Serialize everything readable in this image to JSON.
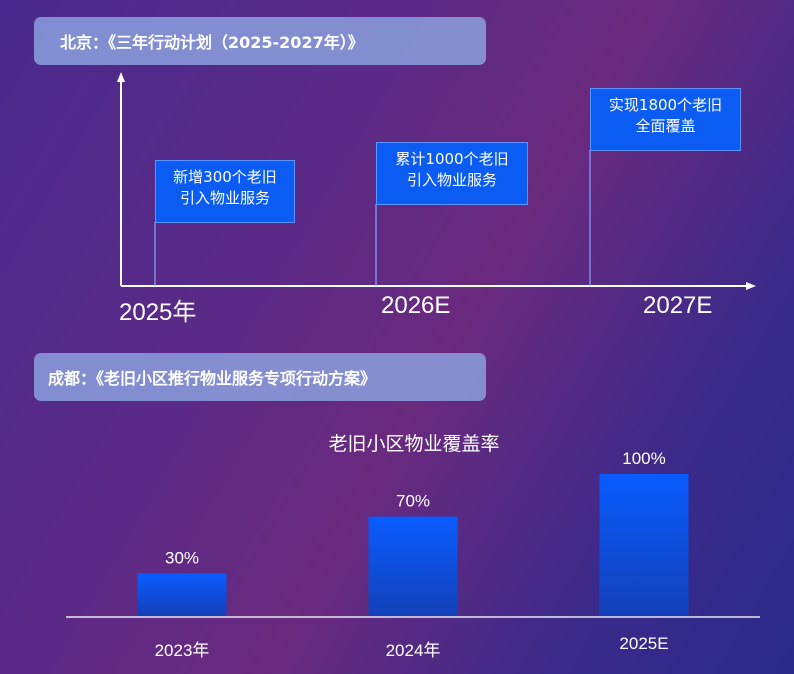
{
  "beijing": {
    "header": "北京：《三年行动计划（2025-2027年）》",
    "milestones": [
      {
        "year": "2025年",
        "line1": "新增300个老旧",
        "line2": "引入物业服务"
      },
      {
        "year": "2026E",
        "line1": "累计1000个老旧",
        "line2": "引入物业服务"
      },
      {
        "year": "2027E",
        "line1": "实现1800个老旧",
        "line2": "全面覆盖"
      }
    ]
  },
  "chengdu": {
    "header": "成都：《老旧小区推行物业服务专项行动方案》"
  },
  "chart_data": {
    "type": "bar",
    "title": "老旧小区物业覆盖率",
    "categories": [
      "2023年",
      "2024年",
      "2025E"
    ],
    "values": [
      30,
      70,
      100
    ],
    "value_labels": [
      "30%",
      "70%",
      "100%"
    ],
    "ylim": [
      0,
      100
    ],
    "grid": false,
    "bar_color": "#0b5cf2"
  }
}
